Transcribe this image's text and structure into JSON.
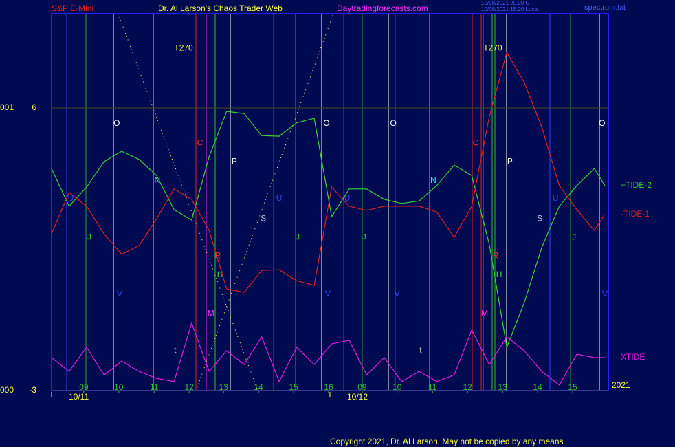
{
  "header": {
    "symbol": "S&P E-Mini",
    "site": "Dr. Al Larson's Chaos Trader Web",
    "url": "Daytradingforecasts.com",
    "stamp_ut": "10/08/2021 20:20 UT",
    "stamp_local": "10/08/2021 15:20 Local",
    "file": "spectrum.txt"
  },
  "chart_data": {
    "type": "line",
    "x": [
      0,
      0.5,
      1,
      1.5,
      2,
      2.5,
      3,
      3.5,
      4,
      4.5,
      5,
      5.5,
      6,
      6.5,
      7,
      7.5,
      8,
      8.5,
      9,
      9.5,
      10,
      10.5,
      11,
      11.5,
      12,
      12.5,
      13,
      13.5,
      14,
      14.5,
      15,
      15.5,
      15.8
    ],
    "series": [
      {
        "name": "+TIDE-2",
        "color": "#3ad23a",
        "values": [
          4.07,
          2.87,
          3.48,
          4.29,
          4.62,
          4.36,
          3.85,
          2.76,
          2.43,
          4.45,
          5.89,
          5.82,
          5.12,
          5.1,
          5.53,
          5.67,
          2.54,
          3.42,
          3.42,
          3.09,
          2.96,
          3.04,
          3.53,
          4.18,
          3.85,
          1.66,
          -1.62,
          -0.2,
          1.56,
          2.87,
          3.53,
          4.07,
          3.53
        ]
      },
      {
        "name": "-TIDE-1",
        "color": "#e02020",
        "values": [
          1.99,
          3.31,
          2.87,
          1.99,
          1.34,
          1.62,
          2.47,
          3.42,
          3.09,
          2.1,
          0.24,
          0.13,
          0.83,
          0.85,
          0.5,
          0.35,
          3.48,
          2.87,
          2.74,
          2.87,
          2.87,
          2.87,
          2.69,
          1.88,
          2.87,
          5.72,
          7.77,
          6.81,
          5.39,
          3.53,
          2.76,
          2.1,
          2.61
        ]
      },
      {
        "name": "XTIDE",
        "color": "#e020e0",
        "values": [
          -1.95,
          -2.39,
          -1.62,
          -2.5,
          -2.06,
          -2.39,
          -2.61,
          -2.71,
          -0.85,
          -2.39,
          -1.73,
          -2.17,
          -1.29,
          -2.71,
          -1.62,
          -2.17,
          -1.51,
          -1.4,
          -2.5,
          -1.95,
          -2.71,
          -2.39,
          -2.71,
          -2.5,
          -1.07,
          -2.17,
          -1.29,
          -1.73,
          -2.39,
          -2.82,
          -1.84,
          -1.95,
          -1.95
        ]
      }
    ],
    "xlim": [
      0,
      15.9
    ],
    "xticks": [
      {
        "value": 0.92,
        "label": "09"
      },
      {
        "value": 1.92,
        "label": "10"
      },
      {
        "value": 2.93,
        "label": "11"
      },
      {
        "value": 3.93,
        "label": "12"
      },
      {
        "value": 4.91,
        "label": "13"
      },
      {
        "value": 5.91,
        "label": "14"
      },
      {
        "value": 6.91,
        "label": "15"
      },
      {
        "value": 7.91,
        "label": "16"
      },
      {
        "value": 8.87,
        "label": "09"
      },
      {
        "value": 9.87,
        "label": "10"
      },
      {
        "value": 10.88,
        "label": "11"
      },
      {
        "value": 11.88,
        "label": "12"
      },
      {
        "value": 12.88,
        "label": "13"
      },
      {
        "value": 13.88,
        "label": "14"
      },
      {
        "value": 14.88,
        "label": "15"
      }
    ],
    "date_ticks": [
      {
        "value": 0,
        "label": "10/11"
      },
      {
        "value": 7.95,
        "label": "10/12"
      }
    ],
    "year": "2021",
    "ylim": [
      -3,
      9
    ],
    "yticks": [
      -3,
      6
    ],
    "y_side_labels": [
      "000",
      "001"
    ],
    "grid": true,
    "markers": [
      {
        "label": "O",
        "x": 1.86,
        "y": 5.5,
        "color": "#ffffff"
      },
      {
        "label": "O",
        "x": 7.85,
        "y": 5.5,
        "color": "#ffffff"
      },
      {
        "label": "O",
        "x": 9.76,
        "y": 5.5,
        "color": "#ffffff"
      },
      {
        "label": "O",
        "x": 15.72,
        "y": 5.5,
        "color": "#ffffff"
      },
      {
        "label": "T270",
        "x": 3.77,
        "y": 7.9,
        "color": "#ffff40"
      },
      {
        "label": "T270",
        "x": 12.6,
        "y": 7.9,
        "color": "#ffff40"
      },
      {
        "label": "C",
        "x": 4.24,
        "y": 4.88,
        "color": "#ff3030"
      },
      {
        "label": "C",
        "x": 12.11,
        "y": 4.88,
        "color": "#ff3030"
      },
      {
        "label": "P",
        "x": 5.22,
        "y": 4.29,
        "color": "#ffffff"
      },
      {
        "label": "P",
        "x": 13.09,
        "y": 4.29,
        "color": "#ffffff"
      },
      {
        "label": "N",
        "x": 3.02,
        "y": 3.68,
        "color": "#30e0ff"
      },
      {
        "label": "N",
        "x": 10.9,
        "y": 3.68,
        "color": "#30e0ff"
      },
      {
        "label": "U",
        "x": 0.55,
        "y": 3.11,
        "color": "#3040ff"
      },
      {
        "label": "U",
        "x": 6.5,
        "y": 3.11,
        "color": "#3040ff"
      },
      {
        "label": "U",
        "x": 8.44,
        "y": 3.11,
        "color": "#3040ff"
      },
      {
        "label": "U",
        "x": 14.39,
        "y": 3.11,
        "color": "#3040ff"
      },
      {
        "label": "S",
        "x": 6.05,
        "y": 2.47,
        "color": "#c0c0e0"
      },
      {
        "label": "S",
        "x": 13.94,
        "y": 2.47,
        "color": "#c0c0e0"
      },
      {
        "label": "J",
        "x": 1.08,
        "y": 1.88,
        "color": "#30c030"
      },
      {
        "label": "J",
        "x": 7.03,
        "y": 1.88,
        "color": "#30c030"
      },
      {
        "label": "J",
        "x": 8.93,
        "y": 1.88,
        "color": "#30c030"
      },
      {
        "label": "J",
        "x": 14.92,
        "y": 1.88,
        "color": "#30c030"
      },
      {
        "label": "R",
        "x": 4.75,
        "y": 1.29,
        "color": "#ff3030"
      },
      {
        "label": "R",
        "x": 12.68,
        "y": 1.29,
        "color": "#ff3030"
      },
      {
        "label": "H",
        "x": 4.81,
        "y": 0.68,
        "color": "#30e030"
      },
      {
        "label": "H",
        "x": 12.78,
        "y": 0.68,
        "color": "#30e030"
      },
      {
        "label": "V",
        "x": 1.94,
        "y": 0.07,
        "color": "#3040ff"
      },
      {
        "label": "V",
        "x": 7.89,
        "y": 0.07,
        "color": "#3040ff"
      },
      {
        "label": "V",
        "x": 9.87,
        "y": 0.07,
        "color": "#3040ff"
      },
      {
        "label": "V",
        "x": 15.8,
        "y": 0.07,
        "color": "#3040ff"
      },
      {
        "label": "M",
        "x": 4.55,
        "y": -0.55,
        "color": "#ff30ff"
      },
      {
        "label": "M",
        "x": 12.37,
        "y": -0.55,
        "color": "#ff30ff"
      },
      {
        "label": "t",
        "x": 3.53,
        "y": -1.73,
        "color": "#c0c0c0"
      },
      {
        "label": "t",
        "x": 10.54,
        "y": -1.73,
        "color": "#c0c0c0"
      }
    ]
  },
  "footer": {
    "copyright": "Copyright 2021, Dr. Al Larson. May not be copied by any means"
  }
}
